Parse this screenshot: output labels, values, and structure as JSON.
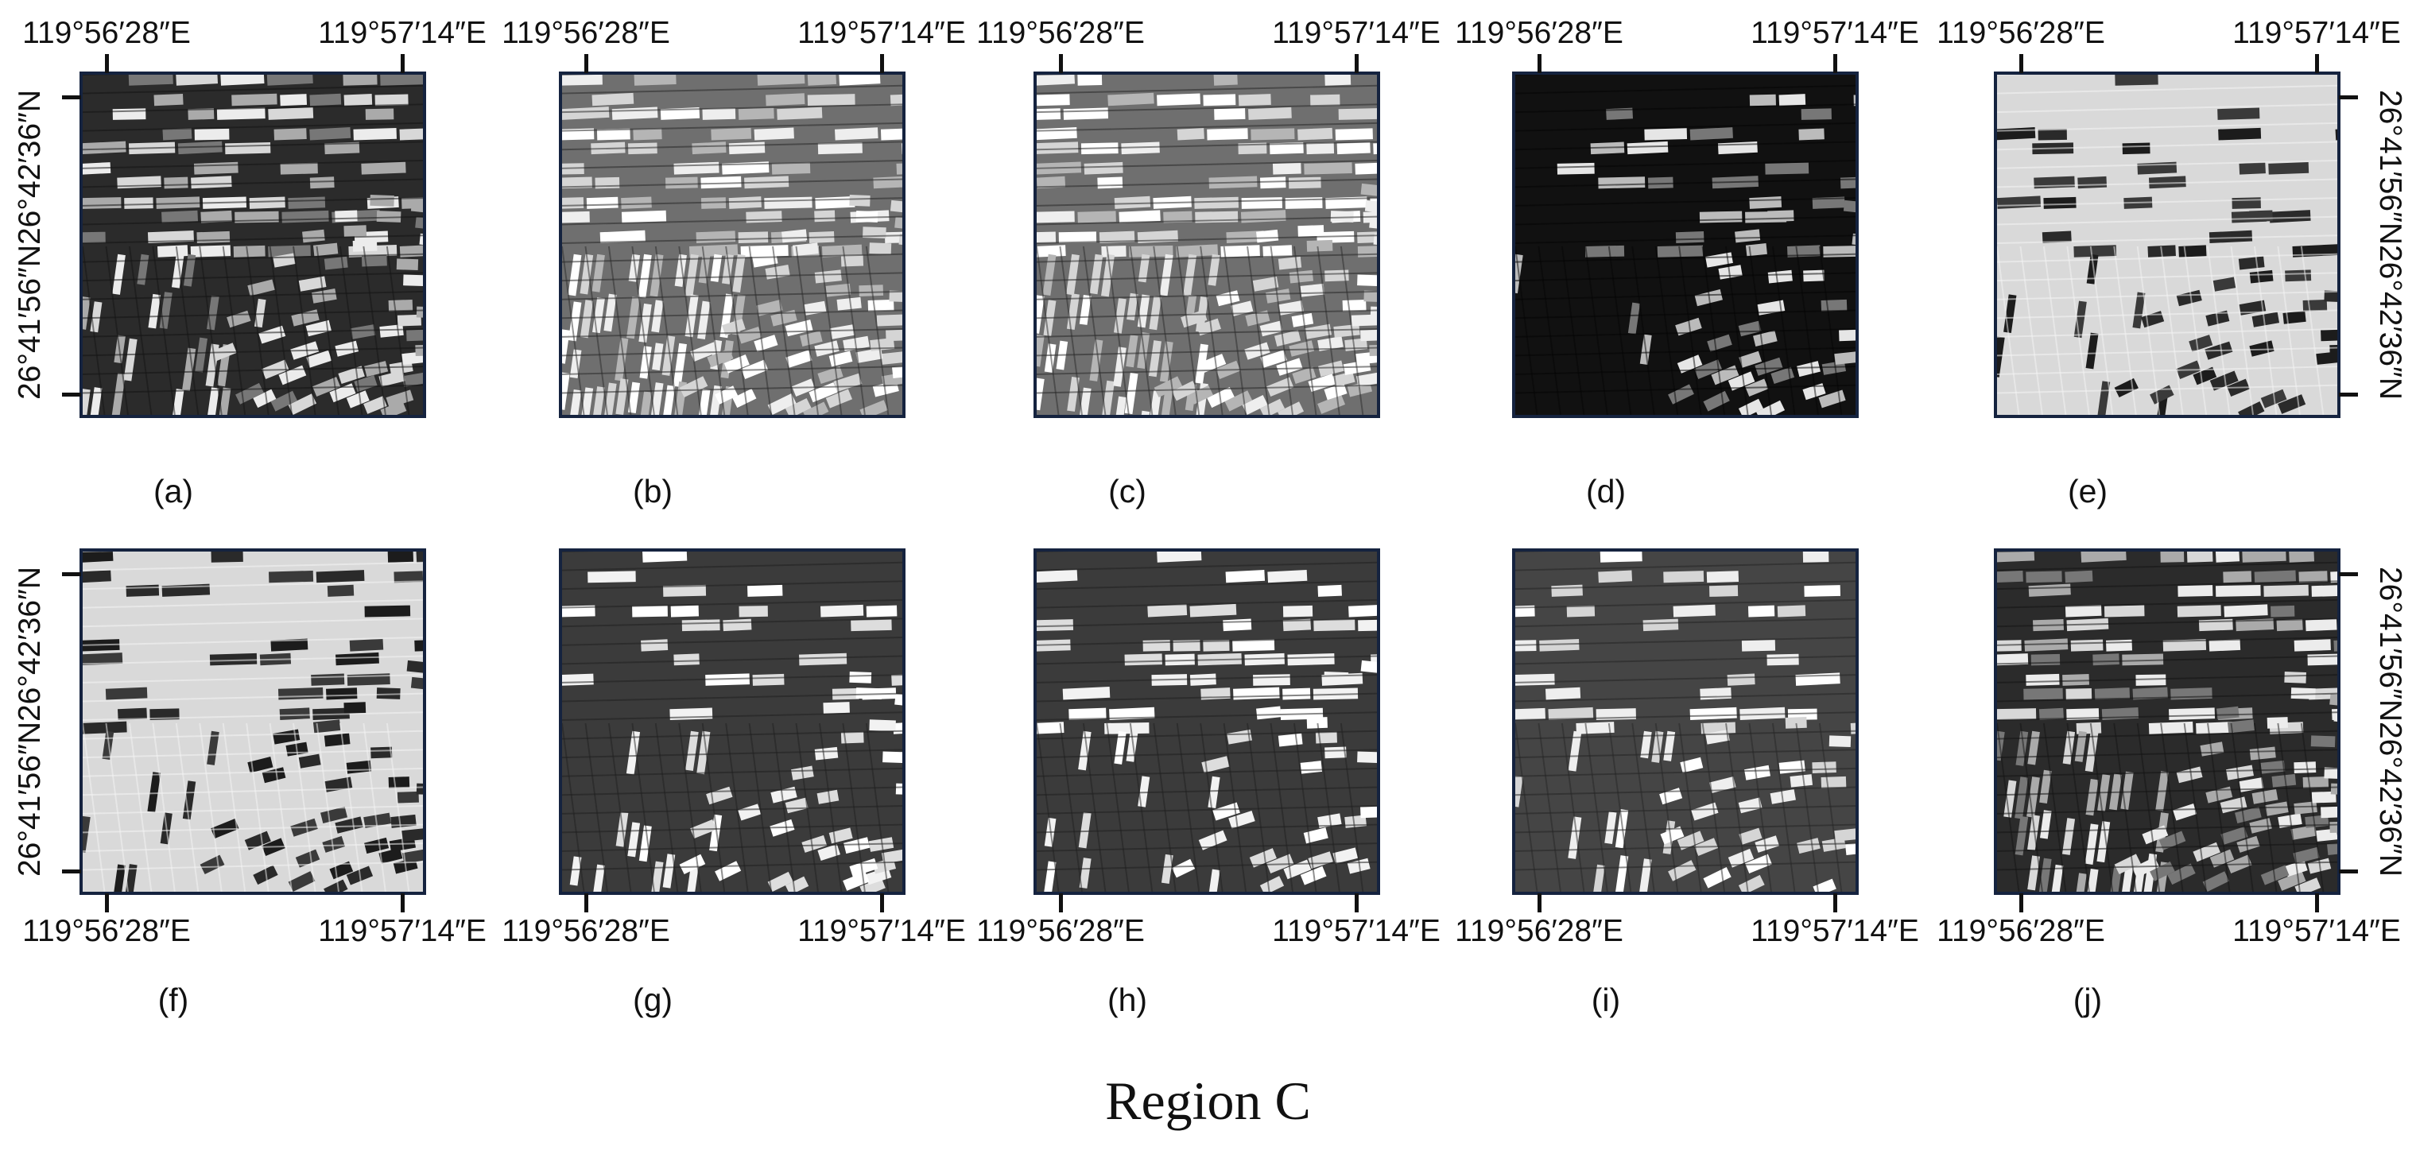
{
  "figure": {
    "region_title": "Region C",
    "lon_left": "119°56′28″E",
    "lon_right": "119°57′14″E",
    "lat_top": "26°42′36″N",
    "lat_bottom": "26°41′56″N"
  },
  "panels": [
    {
      "caption": "(a)",
      "tone": "dark-mixed"
    },
    {
      "caption": "(b)",
      "tone": "light-mixed"
    },
    {
      "caption": "(c)",
      "tone": "light-mixed"
    },
    {
      "caption": "(d)",
      "tone": "very-dark"
    },
    {
      "caption": "(e)",
      "tone": "inverted-bright"
    },
    {
      "caption": "(f)",
      "tone": "inverted-bright"
    },
    {
      "caption": "(g)",
      "tone": "dark-gray"
    },
    {
      "caption": "(h)",
      "tone": "dark-gray"
    },
    {
      "caption": "(i)",
      "tone": "mid-dark-gray"
    },
    {
      "caption": "(j)",
      "tone": "dark-mixed"
    }
  ]
}
